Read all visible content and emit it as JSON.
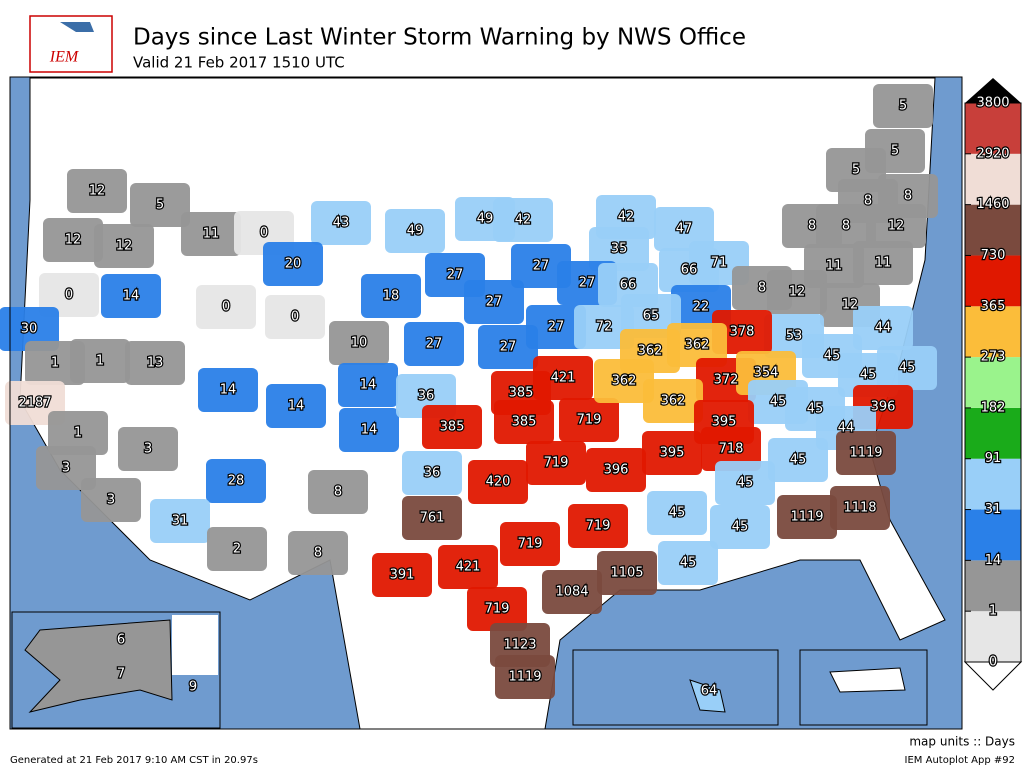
{
  "header": {
    "title": "Days since Last Winter Storm Warning by NWS Office",
    "subtitle": "Valid 21 Feb 2017 1510 UTC",
    "logo_text": "IEM"
  },
  "map": {
    "units_label": "map units :: Days",
    "labels": [
      12,
      5,
      12,
      12,
      11,
      0,
      43,
      49,
      49,
      42,
      42,
      47,
      35,
      66,
      71,
      20,
      27,
      27,
      14,
      0,
      0,
      0,
      18,
      27,
      27,
      66,
      22,
      8,
      12,
      5,
      5,
      5,
      8,
      8,
      12,
      8,
      8,
      11,
      11,
      12,
      44,
      30,
      1,
      1,
      13,
      10,
      27,
      27,
      27,
      72,
      65,
      53,
      378,
      362,
      362,
      372,
      354,
      45,
      45,
      45,
      396,
      14,
      14,
      14,
      14,
      36,
      385,
      385,
      421,
      385,
      719,
      362,
      362,
      45,
      45,
      44,
      395,
      2187,
      1,
      3,
      3,
      28,
      8,
      36,
      420,
      719,
      396,
      395,
      718,
      45,
      45,
      1119,
      3,
      31,
      2,
      8,
      761,
      719,
      719,
      45,
      45,
      1119,
      1118,
      391,
      421,
      1105,
      1084,
      45,
      719,
      1123,
      1119,
      6,
      7,
      9,
      64
    ]
  },
  "colorbar": {
    "levels": [
      0,
      1,
      14,
      31,
      91,
      182,
      273,
      365,
      730,
      1460,
      2920,
      3800
    ],
    "colors": [
      "#e6e6e6",
      "#969696",
      "#2a80e8",
      "#99cff8",
      "#1aab1a",
      "#9af38c",
      "#fbbd3a",
      "#e01800",
      "#7a4a3e",
      "#f0ddd6",
      "#c83f3a"
    ]
  },
  "footer": {
    "generated": "Generated at 21 Feb 2017 9:10 AM CST in 20.97s",
    "app": "IEM Autoplot App #92"
  }
}
